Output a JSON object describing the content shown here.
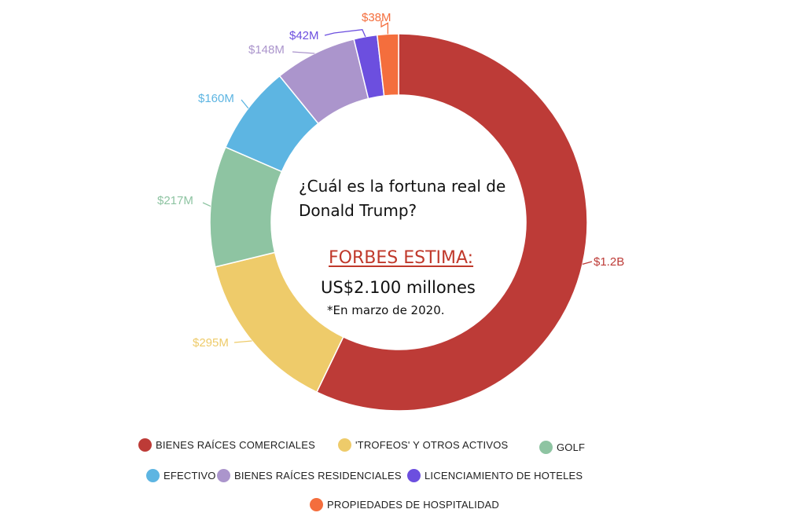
{
  "center": {
    "question": "¿Cuál es la fortuna real de Donald Trump?",
    "heading": "FORBES ESTIMA:",
    "value": "US$2.100 millones",
    "note": "*En marzo de 2020."
  },
  "chart_data": {
    "type": "pie",
    "variant": "donut",
    "title": "",
    "total_label": "US$2.100 millones",
    "slices": [
      {
        "name": "BIENES RAÍCES COMERCIALES",
        "value": 1200,
        "label": "$1.2B",
        "color": "#bd3b37"
      },
      {
        "name": "'TROFEOS' Y OTROS ACTIVOS",
        "value": 295,
        "label": "$295M",
        "color": "#eecb6a"
      },
      {
        "name": "GOLF",
        "value": 217,
        "label": "$217M",
        "color": "#8ec4a2"
      },
      {
        "name": "EFECTIVO",
        "value": 160,
        "label": "$160M",
        "color": "#5db5e2"
      },
      {
        "name": "BIENES RAÍCES RESIDENCIALES",
        "value": 148,
        "label": "$148M",
        "color": "#ab95cc"
      },
      {
        "name": "LICENCIAMIENTO DE HOTELES",
        "value": 42,
        "label": "$42M",
        "color": "#6c4fdf"
      },
      {
        "name": "PROPIEDADES DE HOSPITALIDAD",
        "value": 38,
        "label": "$38M",
        "color": "#f46e3d"
      }
    ],
    "units": "USD millions",
    "legend_position": "bottom"
  }
}
